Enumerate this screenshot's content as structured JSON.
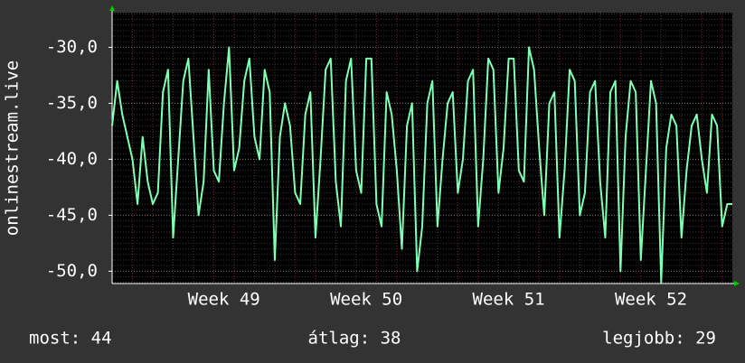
{
  "chart_data": {
    "type": "line",
    "y_label": "onlinestream.live",
    "x": [
      0,
      0.25,
      0.5,
      0.75,
      1,
      1.25,
      1.5,
      1.75,
      2,
      2.25,
      2.5,
      2.75,
      3,
      3.25,
      3.5,
      3.75,
      4,
      4.25,
      4.5,
      4.75,
      5,
      5.25,
      5.5,
      5.75,
      6,
      6.25,
      6.5,
      6.75,
      7,
      7.25,
      7.5,
      7.75,
      8,
      8.25,
      8.5,
      8.75,
      9,
      9.25,
      9.5,
      9.75,
      10,
      10.25,
      10.5,
      10.75,
      11,
      11.25,
      11.5,
      11.75,
      12,
      12.25,
      12.5,
      12.75,
      13,
      13.25,
      13.5,
      13.75,
      14,
      14.25,
      14.5,
      14.75,
      15,
      15.25,
      15.5,
      15.75,
      16,
      16.25,
      16.5,
      16.75,
      17,
      17.25,
      17.5,
      17.75,
      18,
      18.25,
      18.5,
      18.75,
      19,
      19.25,
      19.5,
      19.75,
      20,
      20.25,
      20.5,
      20.75,
      21,
      21.25,
      21.5,
      21.75,
      22,
      22.25,
      22.5,
      22.75,
      23,
      23.25,
      23.5,
      23.75,
      24,
      24.25,
      24.5,
      24.75,
      25,
      25.25,
      25.5,
      25.75,
      26,
      26.25,
      26.5,
      26.75,
      27,
      27.25,
      27.5,
      27.75,
      28,
      28.25,
      28.5,
      28.75,
      29,
      29.25,
      29.5,
      29.75,
      30,
      30.25,
      30.5
    ],
    "series": [
      {
        "color": "#80ffb4",
        "values": [
          -37,
          -33,
          -36,
          -38,
          -40,
          -44,
          -38,
          -42,
          -44,
          -43,
          -34,
          -32,
          -47,
          -40,
          -33,
          -31,
          -38,
          -45,
          -42,
          -32,
          -41,
          -42,
          -35,
          -30,
          -41,
          -39,
          -33,
          -31,
          -38,
          -40,
          -32,
          -34,
          -49,
          -38,
          -35,
          -37,
          -43,
          -44,
          -36,
          -34,
          -47,
          -40,
          -32,
          -31,
          -42,
          -46,
          -33,
          -31,
          -41,
          -43,
          -31,
          -31,
          -44,
          -46,
          -34,
          -36,
          -41,
          -48,
          -37,
          -35,
          -50,
          -46,
          -35,
          -33,
          -46,
          -40,
          -35,
          -34,
          -43,
          -40,
          -33,
          -32,
          -46,
          -40,
          -31,
          -32,
          -43,
          -39,
          -31,
          -31,
          -41,
          -42,
          -30,
          -32,
          -39,
          -45,
          -35,
          -34,
          -47,
          -41,
          -32,
          -33,
          -45,
          -43,
          -34,
          -33,
          -42,
          -47,
          -34,
          -33,
          -50,
          -38,
          -33,
          -34,
          -49,
          -41,
          -33,
          -35,
          -51,
          -39,
          -36,
          -37,
          -47,
          -41,
          -37,
          -36,
          -40,
          -43,
          -36,
          -37,
          -46,
          -44,
          -44
        ]
      }
    ],
    "xlim": [
      0,
      30.5
    ],
    "xticks": [
      {
        "value": 5.5,
        "label": "Week 49"
      },
      {
        "value": 12.5,
        "label": "Week 50"
      },
      {
        "value": 19.5,
        "label": "Week 51"
      },
      {
        "value": 26.5,
        "label": "Week 52"
      }
    ],
    "ylim": [
      -51.1,
      -26.9
    ],
    "yticks": [
      {
        "value": -30,
        "label": "-30,0"
      },
      {
        "value": -35,
        "label": "-35,0"
      },
      {
        "value": -40,
        "label": "-40,0"
      },
      {
        "value": -45,
        "label": "-45,0"
      },
      {
        "value": -50,
        "label": "-50,0"
      }
    ],
    "grid": true
  },
  "footer": [
    "most: 44",
    "átlag: 38",
    "legjobb: 29"
  ]
}
